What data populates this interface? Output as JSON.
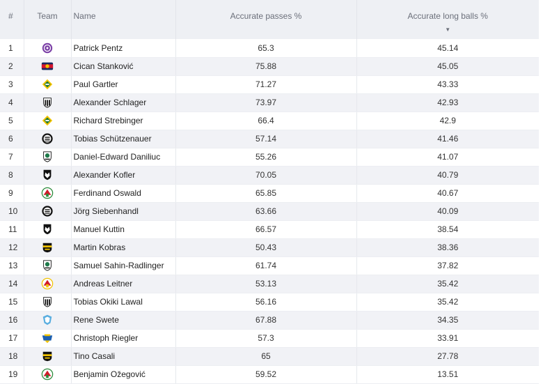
{
  "headers": {
    "num": "#",
    "team": "Team",
    "name": "Name",
    "passes": "Accurate passes %",
    "long_balls": "Accurate long balls %",
    "sort_indicator": "▼"
  },
  "rows": [
    {
      "rank": "1",
      "name": "Patrick Pentz",
      "passes": "65.3",
      "long_balls": "45.14",
      "badge": {
        "icon": "austria-wien-badge-icon",
        "colors": [
          "#7b3fa6",
          "#ffffff"
        ]
      }
    },
    {
      "rank": "2",
      "name": "Cican Stanković",
      "passes": "75.88",
      "long_balls": "45.05",
      "badge": {
        "icon": "salzburg-badge-icon",
        "colors": [
          "#d6142c",
          "#1a2a5e"
        ]
      }
    },
    {
      "rank": "3",
      "name": "Paul Gartler",
      "passes": "71.27",
      "long_balls": "43.33",
      "badge": {
        "icon": "rapid-wien-badge-icon",
        "colors": [
          "#1f7a3a",
          "#f2c300"
        ]
      }
    },
    {
      "rank": "4",
      "name": "Alexander Schlager",
      "passes": "73.97",
      "long_balls": "42.93",
      "badge": {
        "icon": "lask-badge-icon",
        "colors": [
          "#111111",
          "#ffffff"
        ]
      }
    },
    {
      "rank": "5",
      "name": "Richard Strebinger",
      "passes": "66.4",
      "long_balls": "42.9",
      "badge": {
        "icon": "rapid-wien-badge-icon",
        "colors": [
          "#1f7a3a",
          "#f2c300"
        ]
      }
    },
    {
      "rank": "6",
      "name": "Tobias Schützenauer",
      "passes": "57.14",
      "long_balls": "41.46",
      "badge": {
        "icon": "sturm-graz-badge-icon",
        "colors": [
          "#111111",
          "#ffffff"
        ]
      }
    },
    {
      "rank": "7",
      "name": "Daniel-Edward Daniliuc",
      "passes": "55.26",
      "long_balls": "41.07",
      "badge": {
        "icon": "ried-badge-icon",
        "colors": [
          "#1e7a4a",
          "#111111"
        ]
      }
    },
    {
      "rank": "8",
      "name": "Alexander Kofler",
      "passes": "70.05",
      "long_balls": "40.79",
      "badge": {
        "icon": "wolfsberger-badge-icon",
        "colors": [
          "#111111",
          "#ffffff"
        ]
      }
    },
    {
      "rank": "9",
      "name": "Ferdinand Oswald",
      "passes": "65.85",
      "long_balls": "40.67",
      "badge": {
        "icon": "admira-badge-icon",
        "colors": [
          "#d11c2a",
          "#2a8a3a"
        ]
      }
    },
    {
      "rank": "10",
      "name": "Jörg Siebenhandl",
      "passes": "63.66",
      "long_balls": "40.09",
      "badge": {
        "icon": "sturm-graz-badge-icon",
        "colors": [
          "#111111",
          "#ffffff"
        ]
      }
    },
    {
      "rank": "11",
      "name": "Manuel Kuttin",
      "passes": "66.57",
      "long_balls": "38.54",
      "badge": {
        "icon": "wolfsberger-badge-icon",
        "colors": [
          "#111111",
          "#ffffff"
        ]
      }
    },
    {
      "rank": "12",
      "name": "Martin Kobras",
      "passes": "50.43",
      "long_balls": "38.36",
      "badge": {
        "icon": "altach-badge-icon",
        "colors": [
          "#111111",
          "#f2c300"
        ]
      }
    },
    {
      "rank": "13",
      "name": "Samuel Sahin-Radlinger",
      "passes": "61.74",
      "long_balls": "37.82",
      "badge": {
        "icon": "ried-badge-icon",
        "colors": [
          "#1e7a4a",
          "#111111"
        ]
      }
    },
    {
      "rank": "14",
      "name": "Andreas Leitner",
      "passes": "53.13",
      "long_balls": "35.42",
      "badge": {
        "icon": "admira-red-badge-icon",
        "colors": [
          "#d11c2a",
          "#f2c300"
        ]
      }
    },
    {
      "rank": "15",
      "name": "Tobias Okiki Lawal",
      "passes": "56.16",
      "long_balls": "35.42",
      "badge": {
        "icon": "lask-badge-icon",
        "colors": [
          "#111111",
          "#ffffff"
        ]
      }
    },
    {
      "rank": "16",
      "name": "Rene Swete",
      "passes": "67.88",
      "long_balls": "34.35",
      "badge": {
        "icon": "hartberg-badge-icon",
        "colors": [
          "#5aaee0",
          "#ffffff"
        ]
      }
    },
    {
      "rank": "17",
      "name": "Christoph Riegler",
      "passes": "57.3",
      "long_balls": "33.91",
      "badge": {
        "icon": "st-poelten-badge-icon",
        "colors": [
          "#1c5fb0",
          "#f2c300"
        ]
      }
    },
    {
      "rank": "18",
      "name": "Tino Casali",
      "passes": "65",
      "long_balls": "27.78",
      "badge": {
        "icon": "altach-badge-icon",
        "colors": [
          "#111111",
          "#f2c300"
        ]
      }
    },
    {
      "rank": "19",
      "name": "Benjamin Ožegović",
      "passes": "59.52",
      "long_balls": "13.51",
      "badge": {
        "icon": "admira-badge-icon",
        "colors": [
          "#d11c2a",
          "#2a8a3a"
        ]
      }
    }
  ]
}
